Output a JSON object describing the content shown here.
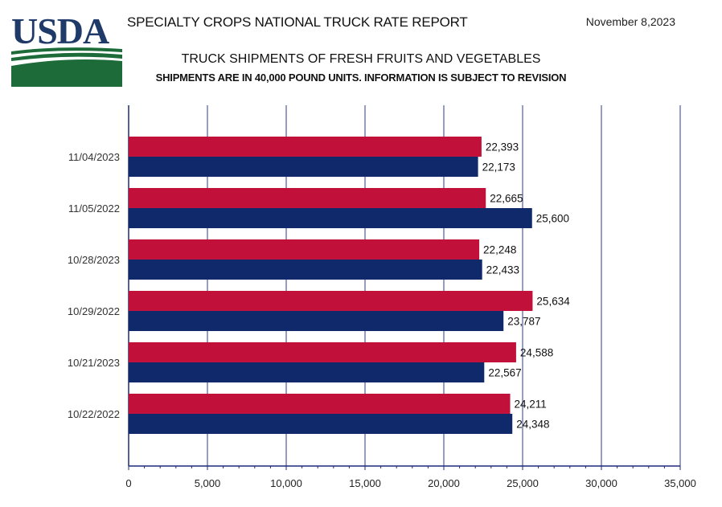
{
  "header": {
    "logo_text": "USDA",
    "report_title": "SPECIALTY CROPS NATIONAL TRUCK RATE REPORT",
    "report_date": "November 8,2023"
  },
  "colors": {
    "series_a": "#c1113a",
    "series_b": "#10296b",
    "axis": "#1f2a7a",
    "grid": "#2b3a8c",
    "logo_blue": "#1f3a68",
    "logo_green": "#1e6b3a"
  },
  "chart_data": {
    "type": "bar",
    "orientation": "horizontal",
    "title": "TRUCK SHIPMENTS OF FRESH FRUITS AND VEGETABLES",
    "subtitle": "SHIPMENTS ARE IN 40,000 POUND UNITS. INFORMATION IS SUBJECT TO REVISION",
    "categories": [
      "11/04/2023",
      "11/05/2022",
      "10/28/2023",
      "10/29/2022",
      "10/21/2023",
      "10/22/2022"
    ],
    "series": [
      {
        "values": [
          22393,
          22665,
          22248,
          25634,
          24588,
          24211
        ],
        "labels": [
          "22,393",
          "22,665",
          "22,248",
          "25,634",
          "24,588",
          "24,211"
        ]
      },
      {
        "values": [
          22173,
          25600,
          22433,
          23787,
          22567,
          24348
        ],
        "labels": [
          "22,173",
          "25,600",
          "22,433",
          "23,787",
          "22,567",
          "24,348"
        ]
      }
    ],
    "xlim": [
      0,
      35000
    ],
    "xticks": [
      0,
      5000,
      10000,
      15000,
      20000,
      25000,
      30000,
      35000
    ],
    "xtick_labels": [
      "0",
      "5,000",
      "10,000",
      "15,000",
      "20,000",
      "25,000",
      "30,000",
      "35,000"
    ],
    "grid": true,
    "legend": "none"
  }
}
